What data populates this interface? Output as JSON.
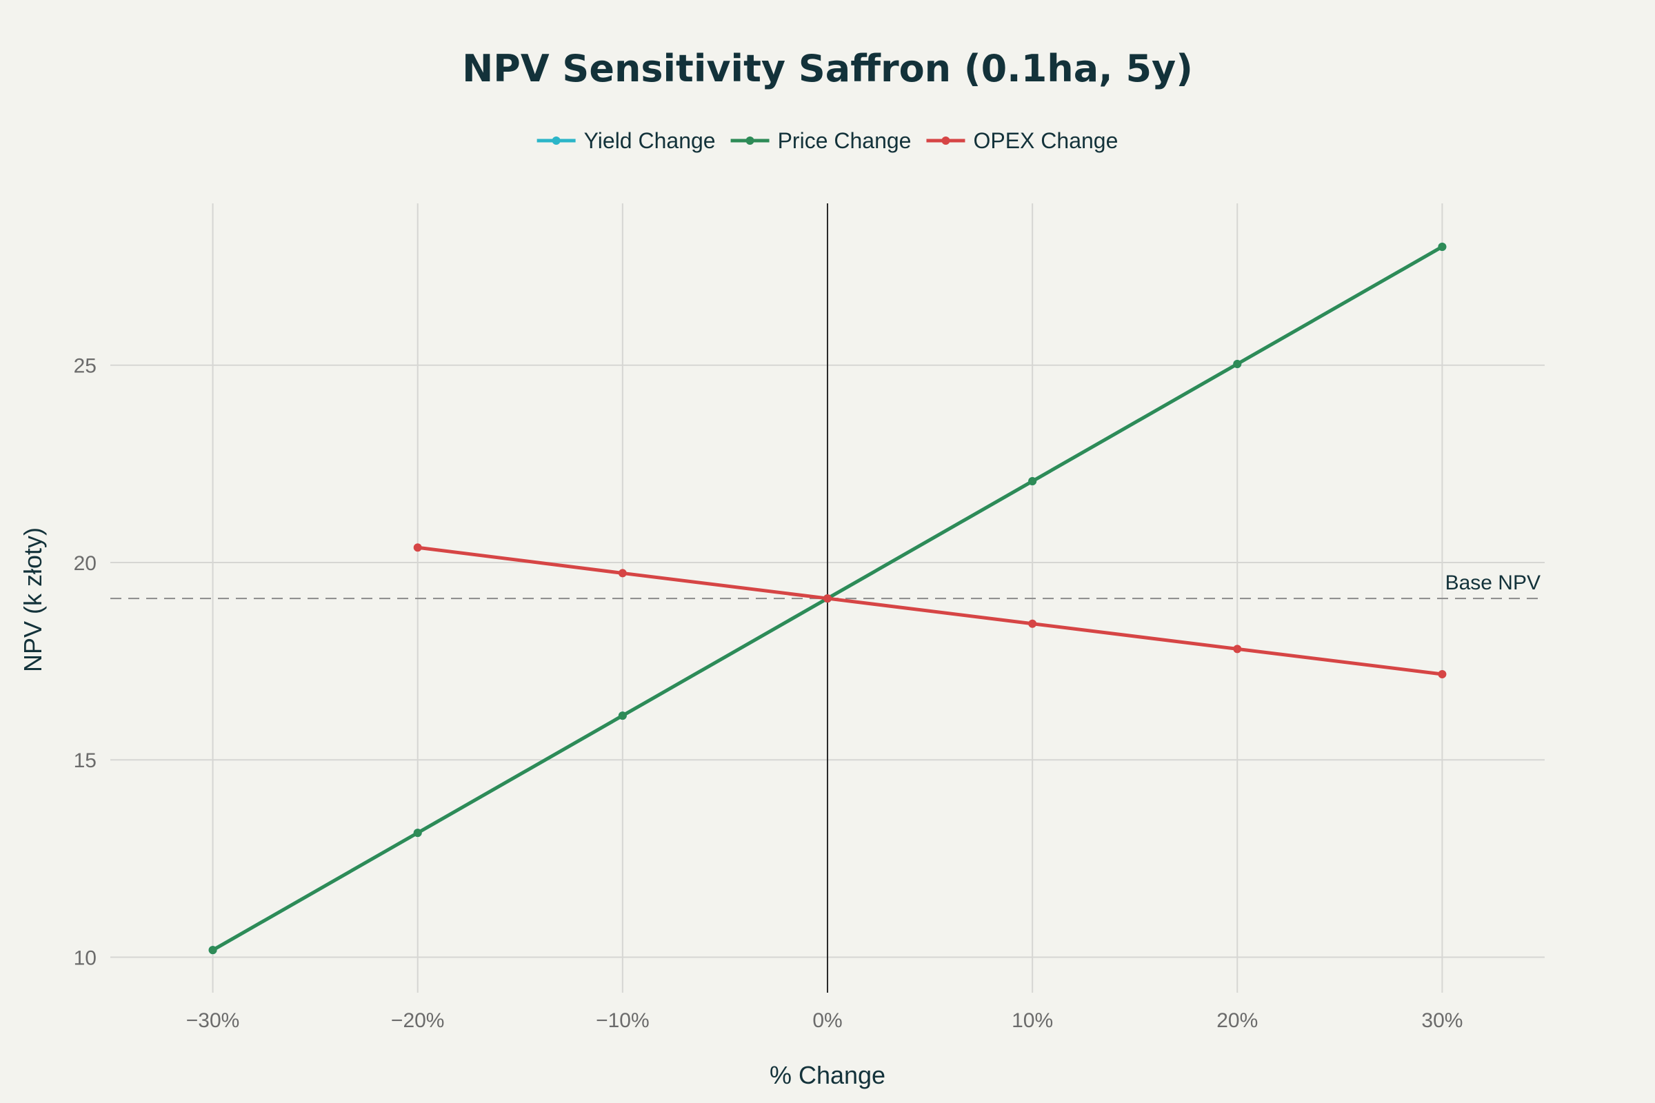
{
  "chart_data": {
    "type": "line",
    "title": "NPV Sensitivity Saffron (0.1ha, 5y)",
    "xlabel": "% Change",
    "ylabel": "NPV (k złoty)",
    "x": [
      -30,
      -20,
      -10,
      0,
      10,
      20,
      30
    ],
    "x_tick_labels": [
      "−30%",
      "−20%",
      "−10%",
      "0%",
      "10%",
      "20%",
      "30%"
    ],
    "y_ticks": [
      10,
      15,
      20,
      25
    ],
    "y_tick_labels": [
      "10",
      "15",
      "20",
      "25"
    ],
    "xlim": [
      -35,
      35
    ],
    "ylim": [
      9.1,
      29.1
    ],
    "grid": true,
    "legend_position": "top-center",
    "series": [
      {
        "name": "Yield Change",
        "color": "#2bb5c8",
        "x": [
          -30,
          -20,
          -10,
          0,
          10,
          20,
          30
        ],
        "values": [
          10.18,
          13.15,
          16.12,
          19.09,
          22.06,
          25.03,
          28.0
        ]
      },
      {
        "name": "Price Change",
        "color": "#2e8b57",
        "x": [
          -30,
          -20,
          -10,
          0,
          10,
          20,
          30
        ],
        "values": [
          10.18,
          13.15,
          16.12,
          19.09,
          22.06,
          25.03,
          28.0
        ]
      },
      {
        "name": "OPEX Change",
        "color": "#d64545",
        "x": [
          -20,
          -10,
          0,
          10,
          20,
          30
        ],
        "values": [
          20.38,
          19.73,
          19.09,
          18.45,
          17.81,
          17.17
        ]
      }
    ],
    "reference_line": {
      "y": 19.09,
      "label": "Base NPV"
    },
    "zero_line_x": 0
  }
}
